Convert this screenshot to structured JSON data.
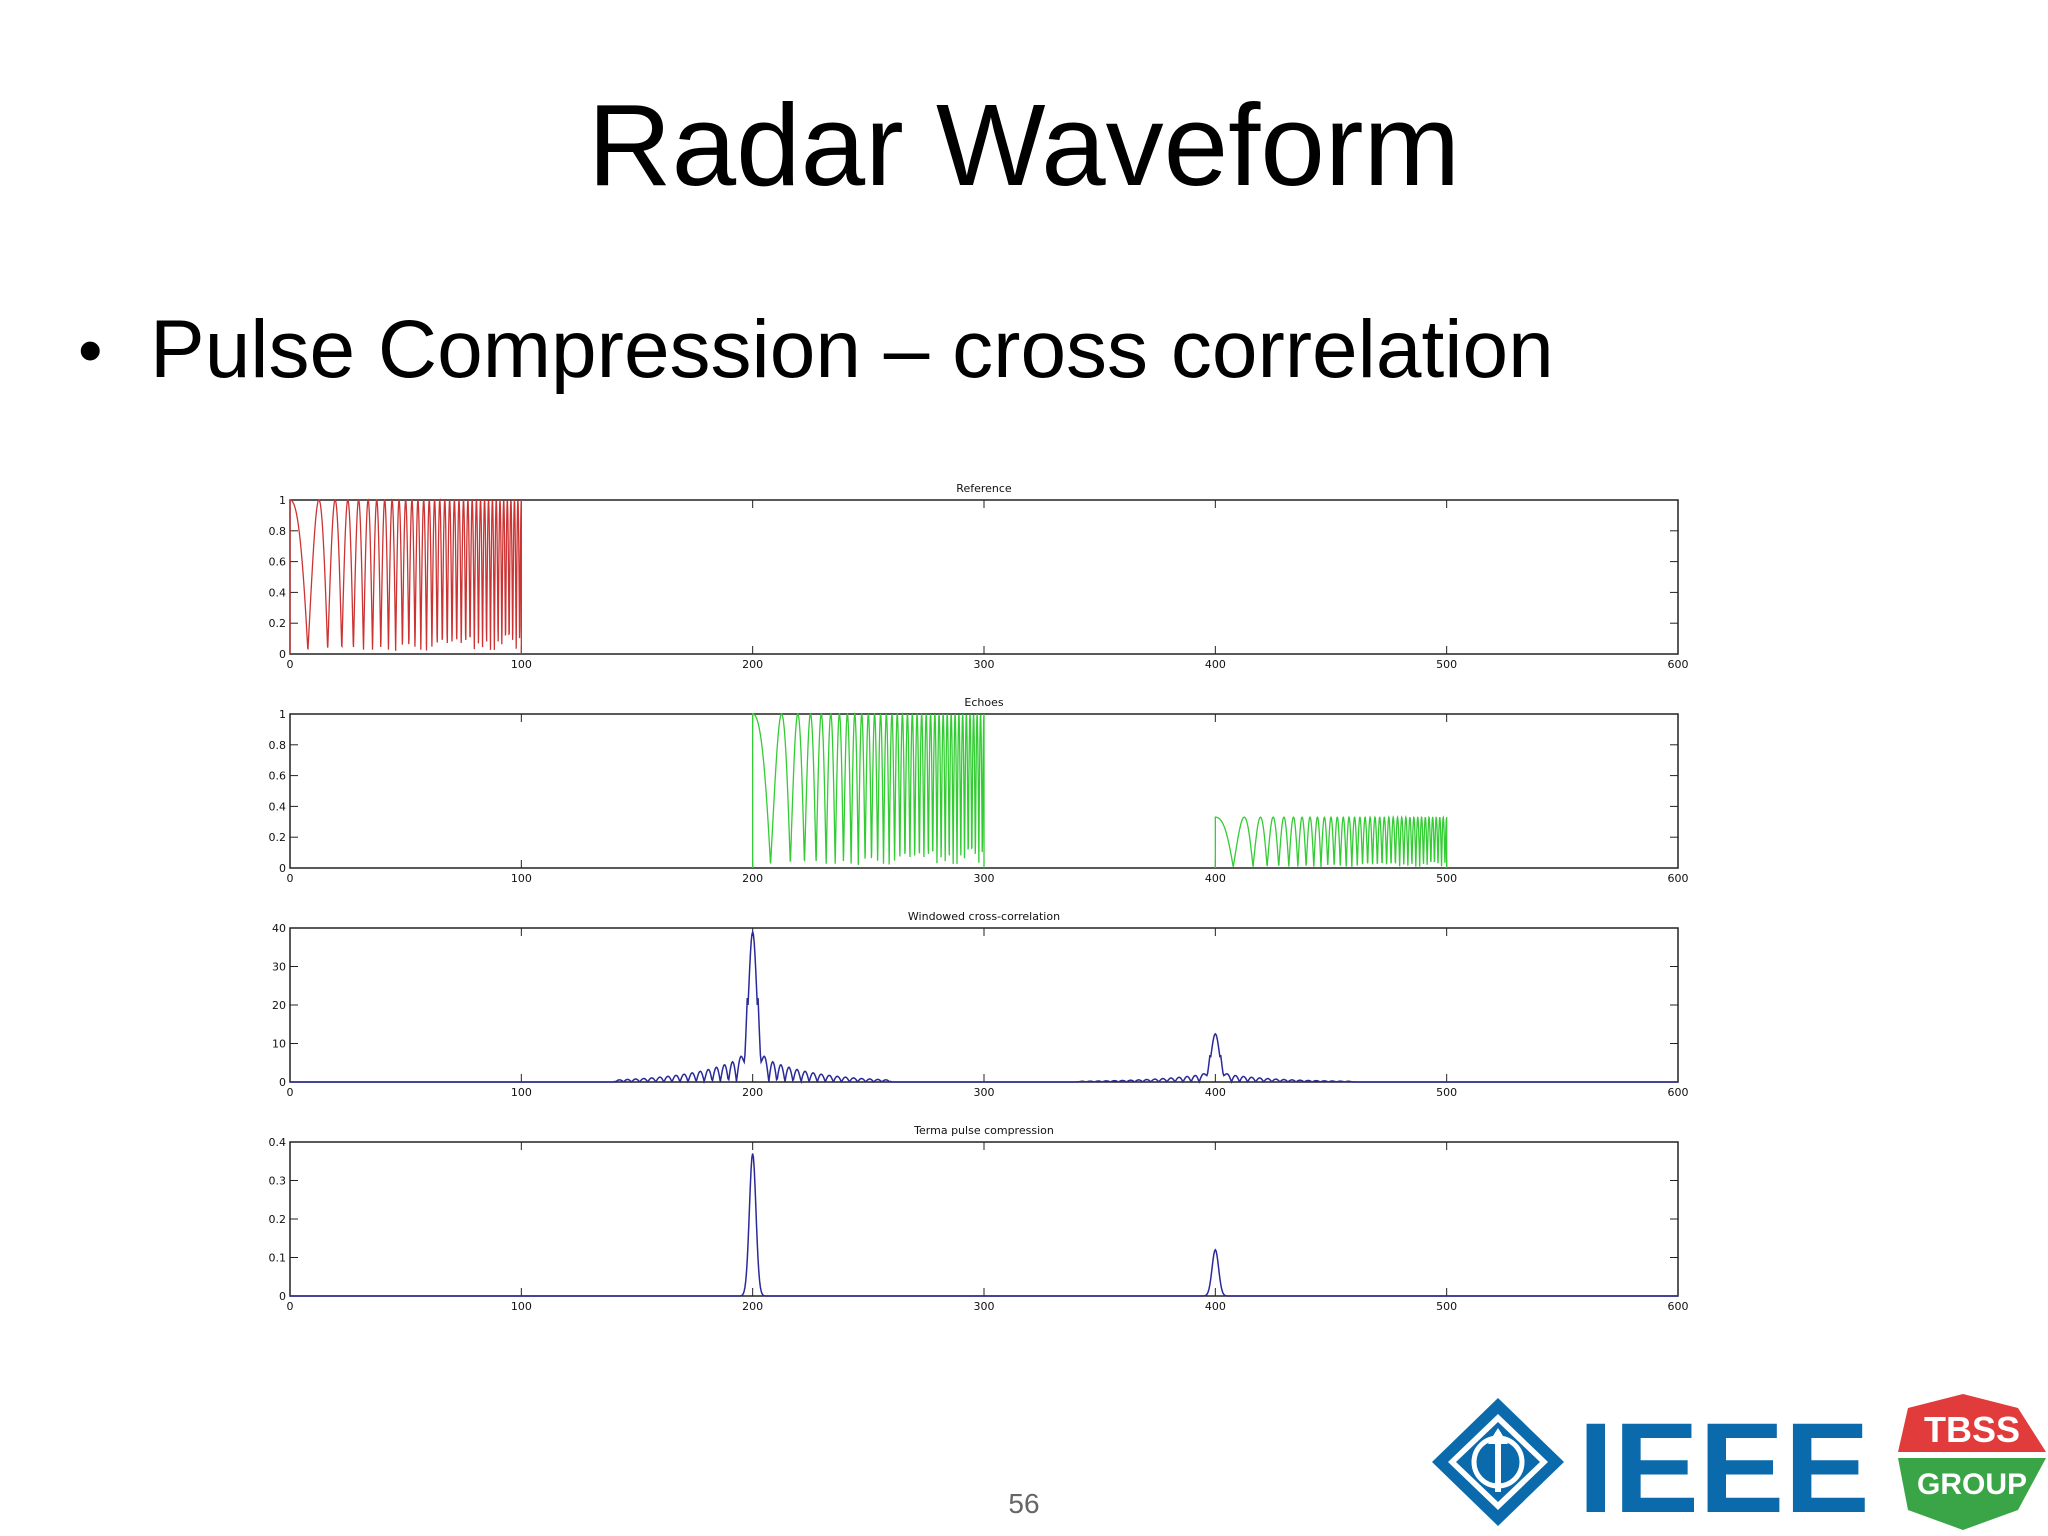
{
  "slide": {
    "title": "Radar Waveform",
    "bullet": "Pulse Compression – cross correlation",
    "page_number": "56"
  },
  "logo": {
    "ieee_text": "IEEE",
    "tbss_text": "TBSS",
    "group_text": "GROUP",
    "ieee_color": "#0a6aab",
    "tbss_top_color": "#e13b3b",
    "tbss_bottom_color": "#3aa547"
  },
  "chart_data": [
    {
      "type": "line",
      "title": "Reference",
      "xlim": [
        0,
        600
      ],
      "ylim": [
        0,
        1
      ],
      "xticks": [
        "0",
        "100",
        "200",
        "300",
        "400",
        "500",
        "600"
      ],
      "yticks": [
        "0",
        "0.2",
        "0.4",
        "0.6",
        "0.8",
        "1"
      ],
      "color": "#cc3333",
      "signal": "chirp",
      "series": [
        {
          "segments": [
            {
              "start": 0,
              "end": 100,
              "amplitude": 1.0
            }
          ]
        }
      ]
    },
    {
      "type": "line",
      "title": "Echoes",
      "xlim": [
        0,
        600
      ],
      "ylim": [
        0,
        1
      ],
      "xticks": [
        "0",
        "100",
        "200",
        "300",
        "400",
        "500",
        "600"
      ],
      "yticks": [
        "0",
        "0.2",
        "0.4",
        "0.6",
        "0.8",
        "1"
      ],
      "color": "#33cc33",
      "signal": "chirp",
      "series": [
        {
          "segments": [
            {
              "start": 200,
              "end": 300,
              "amplitude": 1.0
            },
            {
              "start": 400,
              "end": 500,
              "amplitude": 0.33
            }
          ]
        }
      ]
    },
    {
      "type": "line",
      "title": "Windowed cross-correlation",
      "xlim": [
        0,
        600
      ],
      "ylim": [
        0,
        40
      ],
      "xticks": [
        "0",
        "100",
        "200",
        "300",
        "400",
        "500",
        "600"
      ],
      "yticks": [
        "0",
        "10",
        "20",
        "30",
        "40"
      ],
      "color": "#2a2a9a",
      "signal": "peaks",
      "series": [
        {
          "peaks": [
            {
              "x": 200,
              "y": 39
            },
            {
              "x": 400,
              "y": 12.5
            }
          ],
          "sidelobe_ratio": 0.2
        }
      ]
    },
    {
      "type": "line",
      "title": "Terma pulse compression",
      "xlim": [
        0,
        600
      ],
      "ylim": [
        0,
        0.4
      ],
      "xticks": [
        "0",
        "100",
        "200",
        "300",
        "400",
        "500",
        "600"
      ],
      "yticks": [
        "0",
        "0.1",
        "0.2",
        "0.3",
        "0.4"
      ],
      "color": "#2a2a9a",
      "signal": "peaks_clean",
      "series": [
        {
          "peaks": [
            {
              "x": 200,
              "y": 0.37
            },
            {
              "x": 400,
              "y": 0.12
            }
          ]
        }
      ]
    }
  ]
}
